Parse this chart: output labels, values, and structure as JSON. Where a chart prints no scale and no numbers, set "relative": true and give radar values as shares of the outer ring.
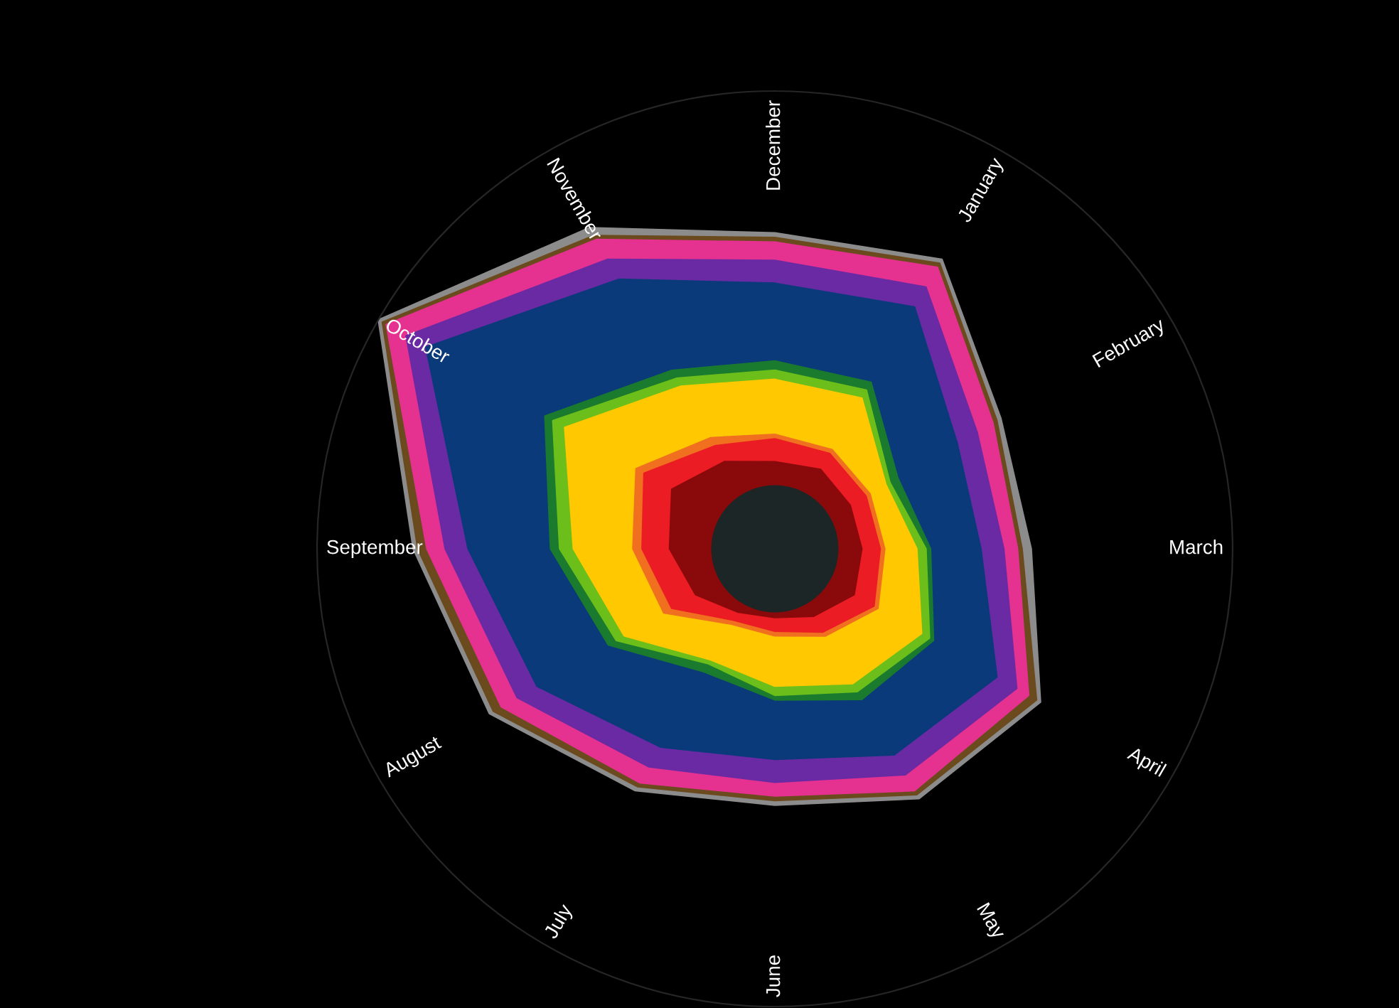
{
  "chart_data": {
    "type": "radar",
    "relative": true,
    "categories": [
      "December",
      "January",
      "February",
      "March",
      "April",
      "May",
      "June",
      "July",
      "August",
      "September",
      "October",
      "November"
    ],
    "series": [
      {
        "color": "#8c8c8c",
        "values": [
          0.69,
          0.73,
          0.57,
          0.56,
          0.67,
          0.63,
          0.56,
          0.61,
          0.72,
          0.79,
          1,
          0.81
        ]
      },
      {
        "color": "#6b4a1e",
        "values": [
          0.68,
          0.72,
          0.56,
          0.54,
          0.66,
          0.62,
          0.55,
          0.6,
          0.71,
          0.78,
          0.99,
          0.79
        ]
      },
      {
        "color": "#e5318f",
        "values": [
          0.67,
          0.71,
          0.55,
          0.53,
          0.64,
          0.61,
          0.54,
          0.59,
          0.69,
          0.76,
          0.98,
          0.78
        ]
      },
      {
        "color": "#6a2aa3",
        "values": [
          0.63,
          0.66,
          0.51,
          0.5,
          0.61,
          0.57,
          0.51,
          0.55,
          0.65,
          0.72,
          0.93,
          0.73
        ]
      },
      {
        "color": "#0a3a7a",
        "values": [
          0.58,
          0.61,
          0.46,
          0.45,
          0.56,
          0.52,
          0.46,
          0.5,
          0.6,
          0.67,
          0.88,
          0.68
        ]
      },
      {
        "color": "#1a7a2e",
        "values": [
          0.41,
          0.42,
          0.31,
          0.34,
          0.4,
          0.38,
          0.33,
          0.31,
          0.42,
          0.49,
          0.58,
          0.45
        ]
      },
      {
        "color": "#6cbf1a",
        "values": [
          0.39,
          0.4,
          0.29,
          0.33,
          0.39,
          0.36,
          0.32,
          0.29,
          0.4,
          0.47,
          0.56,
          0.43
        ]
      },
      {
        "color": "#ffc800",
        "values": [
          0.37,
          0.38,
          0.28,
          0.31,
          0.37,
          0.34,
          0.3,
          0.28,
          0.38,
          0.44,
          0.53,
          0.41
        ]
      },
      {
        "color": "#f07020",
        "values": [
          0.25,
          0.25,
          0.24,
          0.24,
          0.26,
          0.22,
          0.19,
          0.19,
          0.28,
          0.31,
          0.35,
          0.28
        ]
      },
      {
        "color": "#ec1c24",
        "values": [
          0.24,
          0.24,
          0.23,
          0.23,
          0.25,
          0.21,
          0.18,
          0.18,
          0.26,
          0.29,
          0.33,
          0.26
        ]
      },
      {
        "color": "#8a0a0c",
        "values": [
          0.19,
          0.2,
          0.19,
          0.19,
          0.2,
          0.17,
          0.15,
          0.16,
          0.2,
          0.23,
          0.26,
          0.22
        ]
      }
    ]
  }
}
